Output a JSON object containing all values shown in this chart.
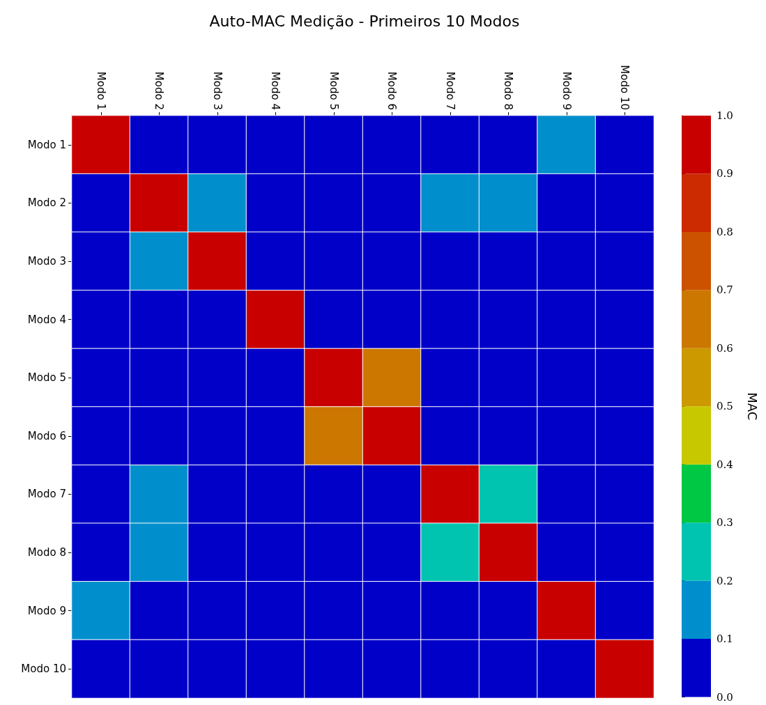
{
  "chart_data": {
    "type": "heatmap",
    "title": "Auto-MAC Medição - Primeiros 10 Modos",
    "clabel": "MAC",
    "categories": [
      "Modo 1",
      "Modo 2",
      "Modo 3",
      "Modo 4",
      "Modo 5",
      "Modo 6",
      "Modo 7",
      "Modo 8",
      "Modo 9",
      "Modo 10"
    ],
    "y_categories": [
      "Modo 1",
      "Modo 2",
      "Modo 3",
      "Modo 4",
      "Modo 5",
      "Modo 6",
      "Modo 7",
      "Modo 8",
      "Modo 9",
      "Modo 10"
    ],
    "cells": [
      [
        1,
        0.05,
        0.05,
        0.05,
        0.05,
        0.05,
        0.05,
        0.05,
        0.15,
        0.05
      ],
      [
        0.05,
        1,
        0.15,
        0.05,
        0.05,
        0.05,
        0.15,
        0.15,
        0.05,
        0.05
      ],
      [
        0.05,
        0.15,
        1,
        0.05,
        0.05,
        0.05,
        0.05,
        0.05,
        0.05,
        0.05
      ],
      [
        0.05,
        0.05,
        0.05,
        1,
        0.05,
        0.05,
        0.05,
        0.05,
        0.05,
        0.05
      ],
      [
        0.05,
        0.05,
        0.05,
        0.05,
        1,
        0.65,
        0.05,
        0.05,
        0.05,
        0.05
      ],
      [
        0.05,
        0.05,
        0.05,
        0.05,
        0.65,
        1,
        0.05,
        0.05,
        0.05,
        0.05
      ],
      [
        0.05,
        0.15,
        0.05,
        0.05,
        0.05,
        0.05,
        1,
        0.25,
        0.05,
        0.05
      ],
      [
        0.05,
        0.15,
        0.05,
        0.05,
        0.05,
        0.05,
        0.25,
        1,
        0.05,
        0.05
      ],
      [
        0.15,
        0.05,
        0.05,
        0.05,
        0.05,
        0.05,
        0.05,
        0.05,
        1,
        0.05
      ],
      [
        0.05,
        0.05,
        0.05,
        0.05,
        0.05,
        0.05,
        0.05,
        0.05,
        0.05,
        1
      ]
    ],
    "clim": [
      0,
      1
    ],
    "cticks": [
      {
        "value": 0,
        "label": "0.0"
      },
      {
        "value": 0.1,
        "label": "0.1"
      },
      {
        "value": 0.2,
        "label": "0.2"
      },
      {
        "value": 0.3,
        "label": "0.3"
      },
      {
        "value": 0.4,
        "label": "0.4"
      },
      {
        "value": 0.5,
        "label": "0.5"
      },
      {
        "value": 0.6,
        "label": "0.6"
      },
      {
        "value": 0.7,
        "label": "0.7"
      },
      {
        "value": 0.8,
        "label": "0.8"
      },
      {
        "value": 0.9,
        "label": "0.9"
      },
      {
        "value": 1,
        "label": "1.0"
      }
    ]
  }
}
